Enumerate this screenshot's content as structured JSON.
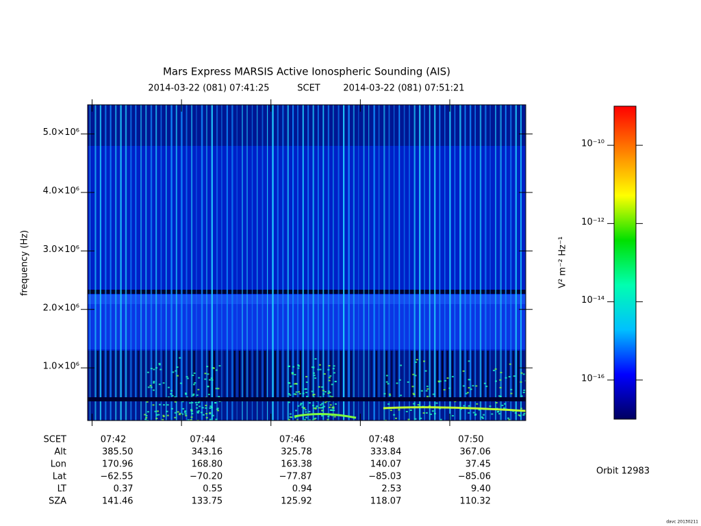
{
  "chart_data": {
    "type": "spectrogram",
    "title": "Mars Express MARSIS Active Ionospheric Sounding (AIS)",
    "time_start": "2014-03-22 (081) 07:41:25",
    "time_system": "SCET",
    "time_end": "2014-03-22 (081) 07:51:21",
    "ylabel": "frequency (Hz)",
    "ylim": [
      100000,
      5500000
    ],
    "yticks": [
      {
        "value": 1000000,
        "label": "1.0×10⁶"
      },
      {
        "value": 2000000,
        "label": "2.0×10⁶"
      },
      {
        "value": 3000000,
        "label": "3.0×10⁶"
      },
      {
        "value": 4000000,
        "label": "4.0×10⁶"
      },
      {
        "value": 5000000,
        "label": "5.0×10⁶"
      }
    ],
    "xlim": [
      41.9,
      51.7
    ],
    "xticks": [
      {
        "value": 42,
        "label": "07:42"
      },
      {
        "value": 44,
        "label": "07:44"
      },
      {
        "value": 46,
        "label": "07:46"
      },
      {
        "value": 48,
        "label": "07:48"
      },
      {
        "value": 50,
        "label": "07:50"
      }
    ],
    "colorbar": {
      "label": "V² m⁻² Hz⁻¹",
      "log": true,
      "lim": [
        1e-17,
        1e-09
      ],
      "ticks": [
        {
          "value": 1e-10,
          "label": "10⁻¹⁰"
        },
        {
          "value": 1e-12,
          "label": "10⁻¹²"
        },
        {
          "value": 1e-14,
          "label": "10⁻¹⁴"
        },
        {
          "value": 1e-16,
          "label": "10⁻¹⁶"
        }
      ],
      "colors": [
        "#000060",
        "#0000ff",
        "#00c0ff",
        "#00ffb0",
        "#00e000",
        "#ffff00",
        "#ff8000",
        "#ff0000"
      ]
    },
    "ephemeris": {
      "labels": [
        "SCET",
        "Alt",
        "Lon",
        "Lat",
        "LT",
        "SZA"
      ],
      "rows": [
        [
          "385.50",
          "343.16",
          "325.78",
          "333.84",
          "367.06"
        ],
        [
          "170.96",
          "168.80",
          "163.38",
          "140.07",
          "37.45"
        ],
        [
          "−62.55",
          "−70.20",
          "−77.87",
          "−85.03",
          "−85.06"
        ],
        [
          "0.37",
          "0.55",
          "0.94",
          "2.53",
          "9.40"
        ],
        [
          "141.46",
          "133.75",
          "125.92",
          "118.07",
          "110.32"
        ]
      ]
    },
    "orbit": "Orbit 12983",
    "footer": "davc 20130211"
  }
}
